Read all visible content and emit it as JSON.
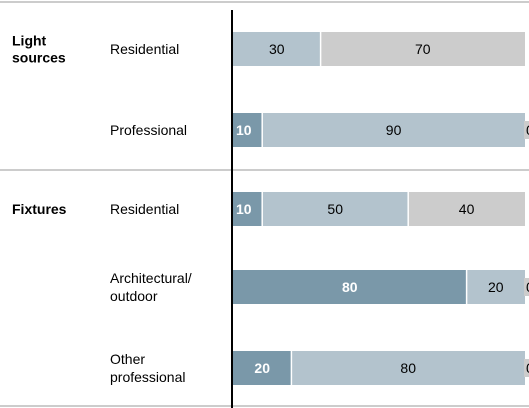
{
  "chart_data": {
    "type": "bar",
    "orientation": "horizontal",
    "stacked": true,
    "percent_scale": true,
    "xlim": [
      0,
      100
    ],
    "groups": [
      {
        "label": "Light\nsources",
        "rows": [
          0,
          1
        ]
      },
      {
        "label": "Fixtures",
        "rows": [
          2,
          3,
          4
        ]
      }
    ],
    "categories": [
      "Residential",
      "Professional",
      "Residential",
      "Architectural/\noutdoor",
      "Other\nprofessional"
    ],
    "series": [
      {
        "values": [
          0,
          10,
          10,
          80,
          20
        ],
        "color": "#7a98a9",
        "label_color": "#ffffff",
        "label_bold": true
      },
      {
        "values": [
          30,
          90,
          50,
          20,
          80
        ],
        "color": "#b3c3cd",
        "label_color": "#000000",
        "label_bold": false
      },
      {
        "values": [
          70,
          0,
          40,
          0,
          0
        ],
        "color": "#cccccc",
        "label_color": "#000000",
        "label_bold": false
      }
    ],
    "grid": false,
    "legend": "none"
  }
}
